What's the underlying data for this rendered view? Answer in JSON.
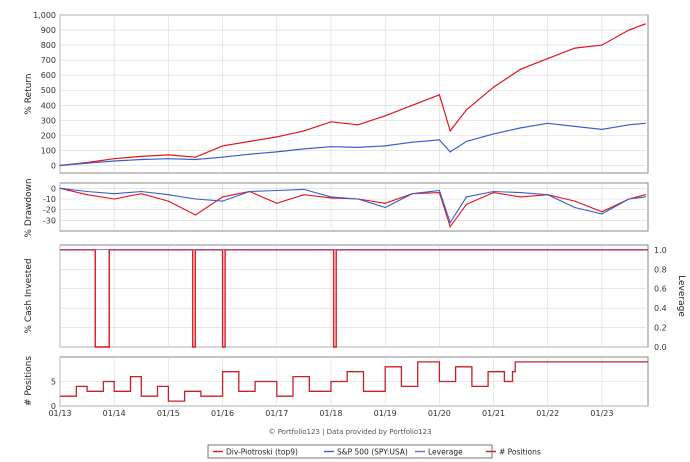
{
  "chart_data": [
    {
      "type": "line",
      "panel": "return",
      "ylabel": "% Return",
      "ylim": [
        -50,
        1000
      ],
      "yticks": [
        "1,000",
        "900",
        "800",
        "700",
        "600",
        "500",
        "400",
        "300",
        "200",
        "100",
        "0"
      ],
      "x": [
        "2013.0",
        "2013.5",
        "2014.0",
        "2014.5",
        "2015.0",
        "2015.5",
        "2016.0",
        "2016.5",
        "2017.0",
        "2017.5",
        "2018.0",
        "2018.5",
        "2019.0",
        "2019.5",
        "2020.0",
        "2020.2",
        "2020.5",
        "2021.0",
        "2021.5",
        "2022.0",
        "2022.5",
        "2023.0",
        "2023.5",
        "2023.8"
      ],
      "series": [
        {
          "name": "Div-Piotroski (top9)",
          "values": [
            0,
            20,
            45,
            60,
            70,
            55,
            130,
            160,
            190,
            230,
            290,
            270,
            330,
            400,
            470,
            230,
            370,
            520,
            640,
            710,
            780,
            800,
            900,
            940
          ]
        },
        {
          "name": "S&P 500 (SPY:USA)",
          "values": [
            0,
            15,
            30,
            40,
            45,
            40,
            55,
            75,
            90,
            110,
            125,
            120,
            130,
            155,
            170,
            90,
            160,
            210,
            250,
            280,
            260,
            240,
            270,
            280
          ]
        }
      ],
      "grid": true
    },
    {
      "type": "line",
      "panel": "drawdown",
      "ylabel": "% Drawdown",
      "ylim": [
        -40,
        5
      ],
      "yticks": [
        "0",
        "-10",
        "-20",
        "-30"
      ],
      "x": [
        "2013.0",
        "2013.5",
        "2014.0",
        "2014.5",
        "2015.0",
        "2015.5",
        "2016.0",
        "2016.5",
        "2017.0",
        "2017.5",
        "2018.0",
        "2018.5",
        "2019.0",
        "2019.5",
        "2020.0",
        "2020.2",
        "2020.5",
        "2021.0",
        "2021.5",
        "2022.0",
        "2022.5",
        "2023.0",
        "2023.5",
        "2023.8"
      ],
      "series": [
        {
          "name": "Div-Piotroski (top9)",
          "values": [
            0,
            -6,
            -10,
            -5,
            -12,
            -25,
            -8,
            -3,
            -14,
            -6,
            -9,
            -10,
            -14,
            -5,
            -4,
            -36,
            -15,
            -4,
            -8,
            -6,
            -12,
            -22,
            -10,
            -6
          ]
        },
        {
          "name": "S&P 500 (SPY:USA)",
          "values": [
            0,
            -3,
            -5,
            -3,
            -6,
            -10,
            -12,
            -3,
            -2,
            -1,
            -8,
            -10,
            -18,
            -5,
            -2,
            -32,
            -8,
            -3,
            -4,
            -6,
            -18,
            -24,
            -10,
            -8
          ]
        }
      ],
      "grid": true
    },
    {
      "type": "line",
      "panel": "cash_invested",
      "ylabel": "% Cash Invested",
      "y2label": "Leverage",
      "ylim": [
        0,
        1.05
      ],
      "y2ticks": [
        "1.0",
        "0.8",
        "0.6",
        "0.4",
        "0.2",
        "0.0"
      ],
      "dips": [
        "2013.65",
        "2015.45",
        "2016.0",
        "2018.05"
      ],
      "series": [
        {
          "name": "Div-Piotroski (top9)",
          "level": 1.0
        },
        {
          "name": "Leverage",
          "level": 1.0
        }
      ],
      "grid": true
    },
    {
      "type": "line",
      "panel": "positions",
      "ylabel": "# Positions",
      "ylim": [
        0,
        10
      ],
      "yticks": [
        "5",
        "0"
      ],
      "x": [
        "2013.0",
        "2013.3",
        "2013.5",
        "2013.8",
        "2014.0",
        "2014.3",
        "2014.5",
        "2014.8",
        "2015.0",
        "2015.3",
        "2015.6",
        "2016.0",
        "2016.3",
        "2016.6",
        "2017.0",
        "2017.3",
        "2017.6",
        "2018.0",
        "2018.3",
        "2018.6",
        "2019.0",
        "2019.3",
        "2019.6",
        "2020.0",
        "2020.3",
        "2020.6",
        "2020.9",
        "2021.2",
        "2021.35",
        "2021.4",
        "2022.0",
        "2022.5",
        "2023.0",
        "2023.8"
      ],
      "series": [
        {
          "name": "# Positions",
          "values": [
            2,
            4,
            3,
            5,
            3,
            6,
            2,
            4,
            1,
            3,
            2,
            7,
            3,
            5,
            2,
            6,
            3,
            5,
            7,
            3,
            8,
            4,
            9,
            5,
            8,
            4,
            7,
            5,
            7,
            9,
            9,
            9,
            9,
            9
          ]
        }
      ],
      "grid": true
    }
  ],
  "x_axis": {
    "labels": [
      "01/13",
      "01/14",
      "01/15",
      "01/16",
      "01/17",
      "01/18",
      "01/19",
      "01/20",
      "01/21",
      "01/22",
      "01/23"
    ]
  },
  "footer": "© Portfolio123 | Data provided by Portfolio123",
  "legend": [
    {
      "label": "Div-Piotroski (top9)",
      "color": "#e3141e"
    },
    {
      "label": "S&P 500 (SPY:USA)",
      "color": "#3a5fcd"
    },
    {
      "label": "Leverage",
      "color": "#8a5cc8"
    },
    {
      "label": "# Positions",
      "color": "#c8202a"
    }
  ],
  "colors": {
    "strategy": "#e3141e",
    "benchmark": "#3a5fcd",
    "leverage": "#8a5cc8",
    "positions": "#c8202a"
  }
}
